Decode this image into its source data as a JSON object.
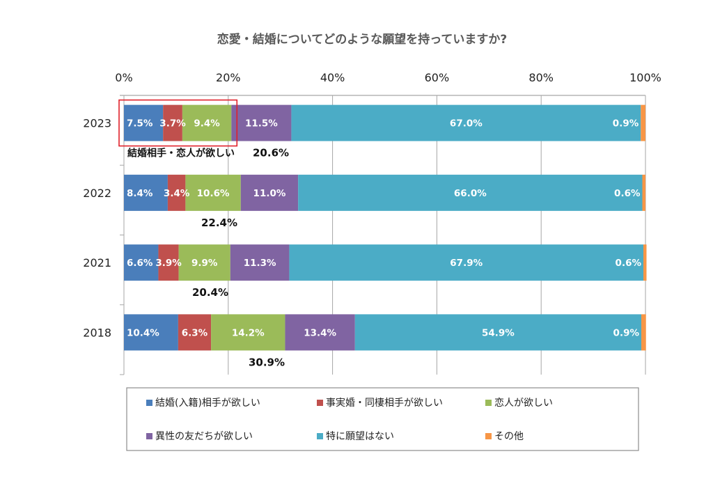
{
  "chart_data": {
    "type": "bar",
    "orientation": "horizontal",
    "stacked": "percent",
    "title": "恋愛・結婚についてどのような願望を持っていますか?",
    "xlabel": "",
    "ylabel": "",
    "xlim": [
      0,
      100
    ],
    "x_ticks": [
      "0%",
      "20%",
      "40%",
      "60%",
      "80%",
      "100%"
    ],
    "x_tick_values": [
      0,
      20,
      40,
      60,
      80,
      100
    ],
    "x_axis_position": "top",
    "grid": true,
    "categories": [
      "2023",
      "2022",
      "2021",
      "2018"
    ],
    "series": [
      {
        "name": "結婚(入籍)相手が欲しい",
        "color": "#4A7EBB",
        "values": [
          7.5,
          8.4,
          6.6,
          10.4
        ],
        "labels": [
          "7.5%",
          "8.4%",
          "6.6%",
          "10.4%"
        ]
      },
      {
        "name": "事実婚・同棲相手が欲しい",
        "color": "#C0504D",
        "values": [
          3.7,
          3.4,
          3.9,
          6.3
        ],
        "labels": [
          "3.7%",
          "3.4%",
          "3.9%",
          "6.3%"
        ]
      },
      {
        "name": "恋人が欲しい",
        "color": "#9BBB59",
        "values": [
          9.4,
          10.6,
          9.9,
          14.2
        ],
        "labels": [
          "9.4%",
          "10.6%",
          "9.9%",
          "14.2%"
        ]
      },
      {
        "name": "異性の友だちが欲しい",
        "color": "#8064A2",
        "values": [
          11.5,
          11.0,
          11.3,
          13.4
        ],
        "labels": [
          "11.5%",
          "11.0%",
          "11.3%",
          "13.4%"
        ]
      },
      {
        "name": "特に願望はない",
        "color": "#4BACC6",
        "values": [
          67.0,
          66.0,
          67.9,
          54.9
        ],
        "labels": [
          "67.0%",
          "66.0%",
          "67.9%",
          "54.9%"
        ]
      },
      {
        "name": "その他",
        "color": "#F79646",
        "values": [
          0.9,
          0.6,
          0.6,
          0.9
        ],
        "labels": [
          "0.9%",
          "0.6%",
          "0.6%",
          "0.9%"
        ]
      }
    ],
    "subtotals": {
      "label_2023": "結婚相手・恋人が欲しい",
      "values": [
        "20.6%",
        "22.4%",
        "20.4%",
        "30.9%"
      ]
    },
    "highlight": {
      "category": "2023",
      "series_covered": [
        "結婚(入籍)相手が欲しい",
        "事実婚・同棲相手が欲しい",
        "恋人が欲しい"
      ],
      "color": "#E0202A"
    },
    "legend": {
      "placement": "bottom",
      "items": [
        "結婚(入籍)相手が欲しい",
        "事実婚・同棲相手が欲しい",
        "恋人が欲しい",
        "異性の友だちが欲しい",
        "特に願望はない",
        "その他"
      ]
    }
  }
}
